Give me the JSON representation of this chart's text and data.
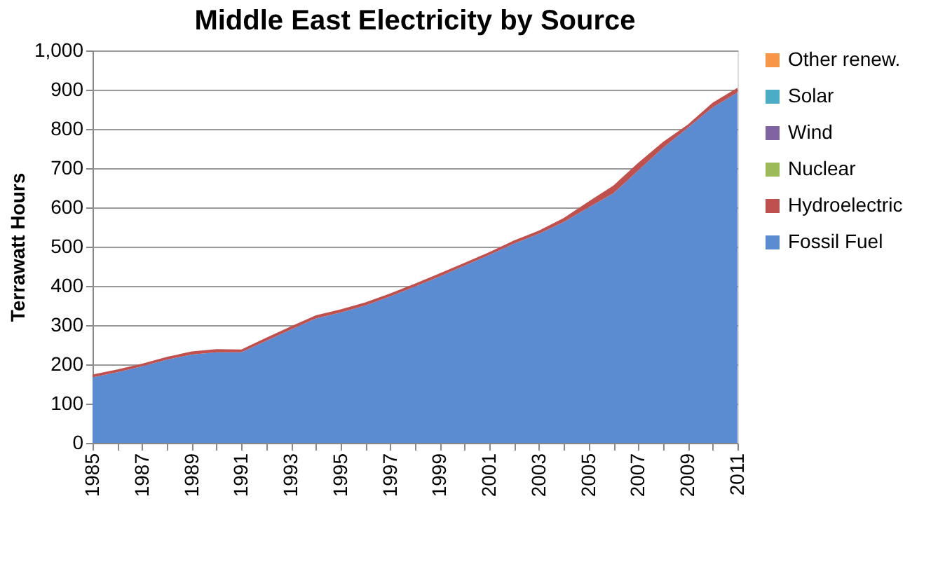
{
  "chart_data": {
    "type": "area",
    "title": "Middle East Electricity by Source",
    "ylabel": "Terrawatt Hours",
    "stacked": true,
    "x": [
      1985,
      1986,
      1987,
      1988,
      1989,
      1990,
      1991,
      1992,
      1993,
      1994,
      1995,
      1996,
      1997,
      1998,
      1999,
      2000,
      2001,
      2002,
      2003,
      2004,
      2005,
      2006,
      2007,
      2008,
      2009,
      2010,
      2011
    ],
    "series": [
      {
        "name": "Fossil Fuel",
        "color": "#5b8bd0",
        "values": [
          167,
          180,
          195,
          212,
          225,
          231,
          231,
          260,
          289,
          317,
          332,
          350,
          373,
          398,
          424,
          452,
          479,
          508,
          533,
          563,
          600,
          636,
          694,
          752,
          803,
          855,
          893
        ]
      },
      {
        "name": "Hydroelectric",
        "color": "#c0504d",
        "values": [
          7,
          7,
          7,
          7,
          8,
          8,
          7,
          8,
          8,
          8,
          8,
          8,
          8,
          8,
          8,
          7,
          7,
          8,
          8,
          10,
          15,
          20,
          20,
          15,
          8,
          12,
          12
        ]
      },
      {
        "name": "Nuclear",
        "color": "#9bbb59",
        "values": [
          null,
          null,
          null,
          null,
          null,
          null,
          null,
          null,
          null,
          null,
          null,
          null,
          null,
          null,
          null,
          null,
          null,
          null,
          null,
          null,
          null,
          null,
          null,
          null,
          null,
          null,
          null
        ]
      },
      {
        "name": "Wind",
        "color": "#8064a2",
        "values": [
          null,
          null,
          null,
          null,
          null,
          null,
          null,
          null,
          null,
          null,
          null,
          null,
          null,
          null,
          null,
          null,
          null,
          null,
          null,
          null,
          null,
          null,
          null,
          null,
          null,
          null,
          null
        ]
      },
      {
        "name": "Solar",
        "color": "#4bacc6",
        "values": [
          null,
          null,
          null,
          null,
          null,
          null,
          null,
          null,
          null,
          null,
          null,
          null,
          null,
          null,
          null,
          null,
          null,
          null,
          null,
          null,
          null,
          null,
          null,
          null,
          null,
          null,
          null
        ]
      },
      {
        "name": "Other renew.",
        "color": "#f79646",
        "values": [
          null,
          null,
          null,
          null,
          null,
          null,
          null,
          null,
          null,
          null,
          null,
          null,
          null,
          null,
          null,
          null,
          null,
          null,
          null,
          null,
          null,
          null,
          null,
          null,
          null,
          null,
          null
        ]
      }
    ],
    "xlim": [
      1985,
      2011
    ],
    "xticks": [
      1985,
      {
        "value": 1986,
        "label": null
      },
      1987,
      {
        "value": 1988,
        "label": null
      },
      1989,
      {
        "value": 1990,
        "label": null
      },
      1991,
      {
        "value": 1992,
        "label": null
      },
      1993,
      {
        "value": 1994,
        "label": null
      },
      1995,
      {
        "value": 1996,
        "label": null
      },
      1997,
      {
        "value": 1998,
        "label": null
      },
      1999,
      {
        "value": 2000,
        "label": null
      },
      2001,
      {
        "value": 2002,
        "label": null
      },
      2003,
      {
        "value": 2004,
        "label": null
      },
      2005,
      {
        "value": 2006,
        "label": null
      },
      2007,
      {
        "value": 2008,
        "label": null
      },
      2009,
      {
        "value": 2010,
        "label": null
      },
      2011
    ],
    "ylim": [
      0,
      1000
    ],
    "yticks": [
      0,
      100,
      200,
      300,
      400,
      500,
      600,
      700,
      800,
      900,
      {
        "value": 1000,
        "label": "1,000"
      }
    ],
    "grid": "y",
    "legend": "right"
  }
}
